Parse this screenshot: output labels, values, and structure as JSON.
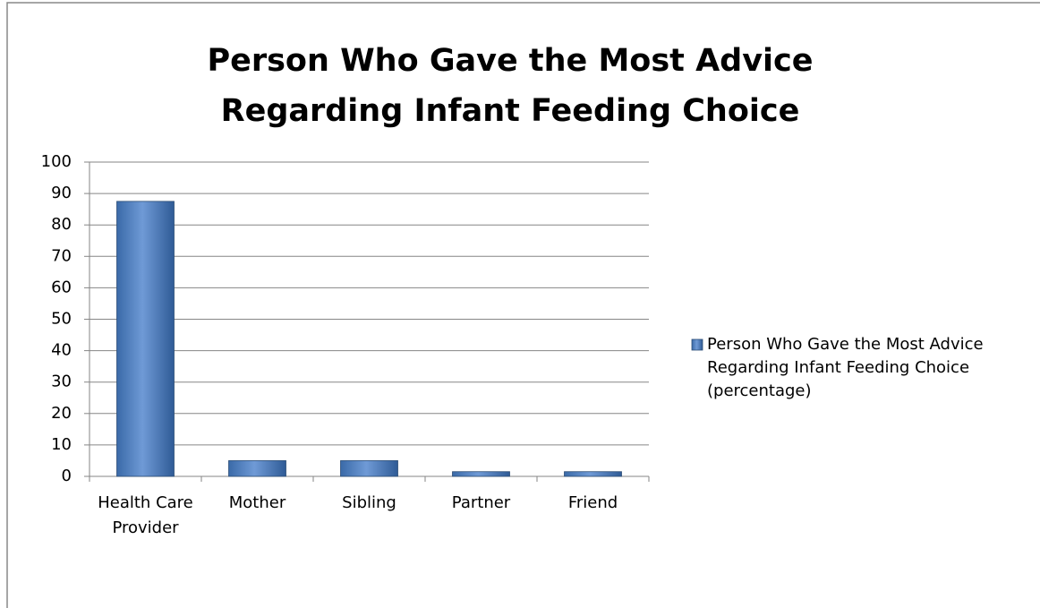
{
  "chart_data": {
    "type": "bar",
    "title": "Person Who Gave the Most Advice Regarding Infant Feeding Choice",
    "categories": [
      "Health Care Provider",
      "Mother",
      "Sibling",
      "Partner",
      "Friend"
    ],
    "series": [
      {
        "name": "Person Who Gave the Most Advice Regarding Infant Feeding Choice (percentage)",
        "color": "#4f81bd",
        "values": [
          87.5,
          5,
          5,
          1.5,
          1.5
        ]
      }
    ],
    "ylim": [
      0,
      100
    ],
    "yticks": [
      0,
      10,
      20,
      30,
      40,
      50,
      60,
      70,
      80,
      90,
      100
    ],
    "grid": true,
    "legend": "right"
  }
}
